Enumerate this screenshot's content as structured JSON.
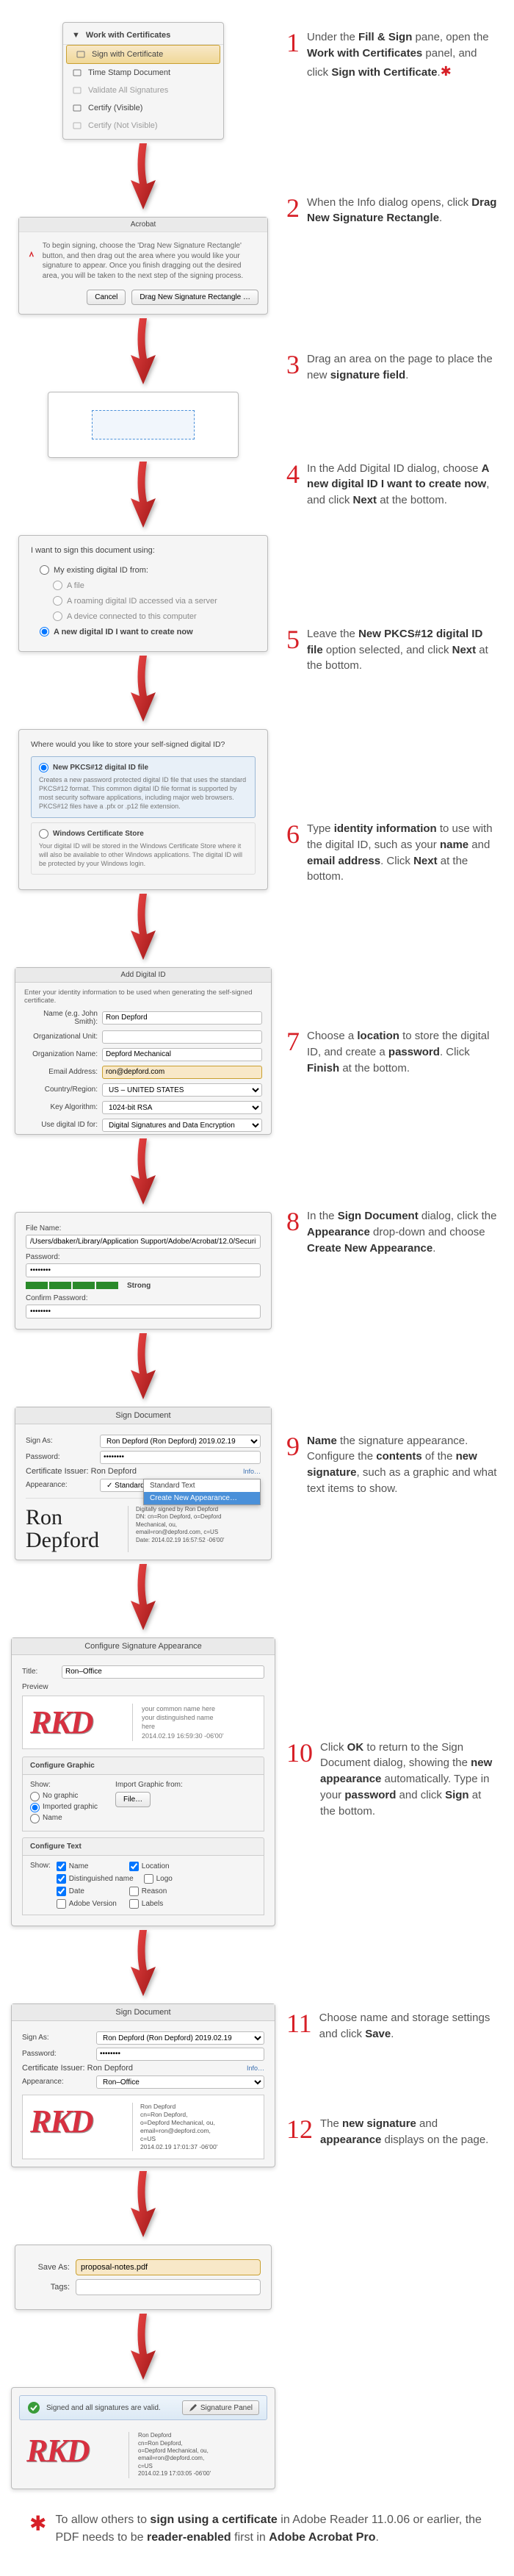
{
  "colors": {
    "accent": "#d72027",
    "highlight_bg": "#f8e8c8",
    "highlight_border": "#c9a030",
    "link": "#3a6fb0",
    "rkd": "#d73040"
  },
  "step1": {
    "panel_header": "Work with Certificates",
    "items": [
      {
        "label": "Sign with Certificate",
        "highlighted": true
      },
      {
        "label": "Time Stamp Document"
      },
      {
        "label": "Validate All Signatures",
        "dim": true
      },
      {
        "label": "Certify (Visible)"
      },
      {
        "label": "Certify (Not Visible)",
        "dim": true
      }
    ],
    "desc": [
      "Under the ",
      "Fill & Sign",
      " pane, open the ",
      "Work with Certificates",
      " panel, and click ",
      "Sign with Certificate",
      "."
    ]
  },
  "step2": {
    "title": "Acrobat",
    "body": "To begin signing, choose the 'Drag New Signature Rectangle' button, and then drag out the area where you would like your signature to appear. Once you finish dragging out the desired area, you will be taken to the next step of the signing process.",
    "btn_cancel": "Cancel",
    "btn_drag": "Drag New Signature Rectangle …",
    "desc": [
      "When the Info dialog opens, click ",
      "Drag New Signature Rectangle",
      "."
    ]
  },
  "step3": {
    "desc": [
      "Drag an area on the page to place the new ",
      "signature field",
      "."
    ]
  },
  "step4": {
    "title": "Add Digital ID",
    "question": "I want to sign this document using:",
    "options": [
      {
        "label": "My existing digital ID from:"
      },
      {
        "label": "A file",
        "sub": true
      },
      {
        "label": "A roaming digital ID accessed via a server",
        "sub": true
      },
      {
        "label": "A device connected to this computer",
        "sub": true
      },
      {
        "label": "A new digital ID I want to create now",
        "selected": true
      }
    ],
    "desc": [
      "In the Add Digital ID dialog, choose ",
      "A new digital ID I want to create now",
      ", and click ",
      "Next",
      " at the bottom."
    ]
  },
  "step5": {
    "question": "Where would you like to store your self-signed digital ID?",
    "opt1_title": "New PKCS#12 digital ID file",
    "opt1_body": "Creates a new password protected digital ID file that uses the standard PKCS#12 format. This common digital ID file format is supported by most security software applications, including major web browsers. PKCS#12 files have a .pfx or .p12 file extension.",
    "opt2_title": "Windows Certificate Store",
    "opt2_body": "Your digital ID will be stored in the Windows Certificate Store where it will also be available to other Windows applications. The digital ID will be protected by your Windows login.",
    "desc": [
      "Leave the ",
      "New PKCS#12 digital ID file",
      " option selected, and click ",
      "Next",
      " at the bottom."
    ]
  },
  "step6": {
    "title": "Add Digital ID",
    "hint": "Enter your identity information to be used when generating the self-signed certificate.",
    "rows": [
      {
        "label": "Name (e.g. John Smith):",
        "value": "Ron Depford"
      },
      {
        "label": "Organizational Unit:",
        "value": ""
      },
      {
        "label": "Organization Name:",
        "value": "Depford Mechanical"
      },
      {
        "label": "Email Address:",
        "value": "ron@depford.com",
        "highlight": true
      },
      {
        "label": "Country/Region:",
        "value": "US – UNITED STATES",
        "type": "select"
      },
      {
        "label": "Key Algorithm:",
        "value": "1024-bit RSA",
        "type": "select"
      },
      {
        "label": "Use digital ID for:",
        "value": "Digital Signatures and Data Encryption",
        "type": "select"
      }
    ],
    "desc": [
      "Type ",
      "identity information",
      " to use with the digital ID, such as your ",
      "name",
      " and ",
      "email address",
      ". Click ",
      "Next",
      " at the bottom."
    ]
  },
  "step7": {
    "file_label": "File Name:",
    "file_value": "/Users/dbaker/Library/Application Support/Adobe/Acrobat/12.0/Security/R",
    "pwd_label": "Password:",
    "pwd_value": "••••••••",
    "strength": "Strong",
    "confirm_label": "Confirm Password:",
    "confirm_value": "••••••••",
    "desc": [
      "Choose a ",
      "location",
      " to store the digital ID, and create a ",
      "password",
      ". Click ",
      "Finish",
      " at the bottom."
    ]
  },
  "step8": {
    "title": "Sign Document",
    "sign_as_label": "Sign As:",
    "sign_as_value": "Ron Depford (Ron Depford) 2019.02.19",
    "pwd_label": "Password:",
    "pwd_value": "••••••••",
    "issuer_label": "Certificate Issuer: Ron Depford",
    "info": "Info…",
    "appearance_label": "Appearance:",
    "appearance_value": "Standard Text",
    "dd_options": [
      "Standard Text",
      "Create New Appearance…"
    ],
    "sig_name": "Ron\nDepford",
    "sig_details": "Digitally signed by Ron Depford\nDN: cn=Ron Depford, o=Depford\nMechanical, ou,\nemail=ron@depford.com, c=US\nDate: 2014.02.19 16:57:52 -06'00'",
    "desc": [
      "In the ",
      "Sign Document",
      " dialog, click the ",
      "Appearance",
      " drop-down and choose ",
      "Create New Appearance",
      "."
    ]
  },
  "step9": {
    "title": "Configure Signature Appearance",
    "title_label": "Title:",
    "title_value": "Ron–Office",
    "preview_label": "Preview",
    "rkd": "RKD",
    "preview_text": "your common name here\nyour distinguished name\nhere\n2014.02.19 16:59:30 -06'00'",
    "sect_graphic": "Configure Graphic",
    "show_label": "Show:",
    "radio_options": [
      "No graphic",
      "Imported graphic",
      "Name"
    ],
    "radio_selected": 1,
    "import_label": "Import Graphic from:",
    "file_btn": "File…",
    "sect_text": "Configure Text",
    "checks": [
      {
        "label": "Name",
        "checked": true
      },
      {
        "label": "Location",
        "checked": true
      },
      {
        "label": "Distinguished name",
        "checked": true
      },
      {
        "label": "Logo",
        "checked": false
      },
      {
        "label": "Date",
        "checked": true
      },
      {
        "label": "Reason",
        "checked": false
      },
      {
        "label": "Adobe Version",
        "checked": false
      },
      {
        "label": "Labels",
        "checked": false
      }
    ],
    "desc": [
      "",
      "Name",
      " the signature appearance. Configure the ",
      "contents",
      " of the ",
      "new signature",
      ", such as a graphic and what text items to show."
    ]
  },
  "step10": {
    "title": "Sign Document",
    "sign_as_value": "Ron Depford (Ron Depford) 2019.02.19",
    "pwd_value": "••••••••",
    "issuer": "Certificate Issuer: Ron Depford",
    "info": "Info…",
    "appearance_value": "Ron–Office",
    "rkd": "RKD",
    "sig_details": "Ron Depford\ncn=Ron Depford,\no=Depford Mechanical, ou,\nemail=ron@depford.com,\nc=US\n2014.02.19 17:01:37 -06'00'",
    "desc": [
      "Click ",
      "OK",
      " to return to the Sign Document dialog, showing the ",
      "new appearance",
      " automatically. Type in your ",
      "password",
      " and click ",
      "Sign",
      " at the bottom."
    ]
  },
  "step11": {
    "save_label": "Save As:",
    "save_value": "proposal-notes.pdf",
    "tags_label": "Tags:",
    "desc": [
      "Choose name and storage settings and click ",
      "Save",
      "."
    ]
  },
  "step12": {
    "valid_text": "Signed and all signatures are valid.",
    "panel_btn": "Signature Panel",
    "rkd": "RKD",
    "sig_details": "Ron Depford\ncn=Ron Depford,\no=Depford Mechanical, ou,\nemail=ron@depford.com,\nc=US\n2014.02.19 17:03:05 -06'00'",
    "desc": [
      "The ",
      "new signature",
      " and ",
      "appearance",
      " displays on the page."
    ]
  },
  "footnote": [
    "To allow others to ",
    "sign using a certificate",
    " in Adobe Reader 11.0.06 or earlier, the PDF needs to be ",
    "reader-enabled",
    " first in ",
    "Adobe Acrobat Pro",
    "."
  ]
}
